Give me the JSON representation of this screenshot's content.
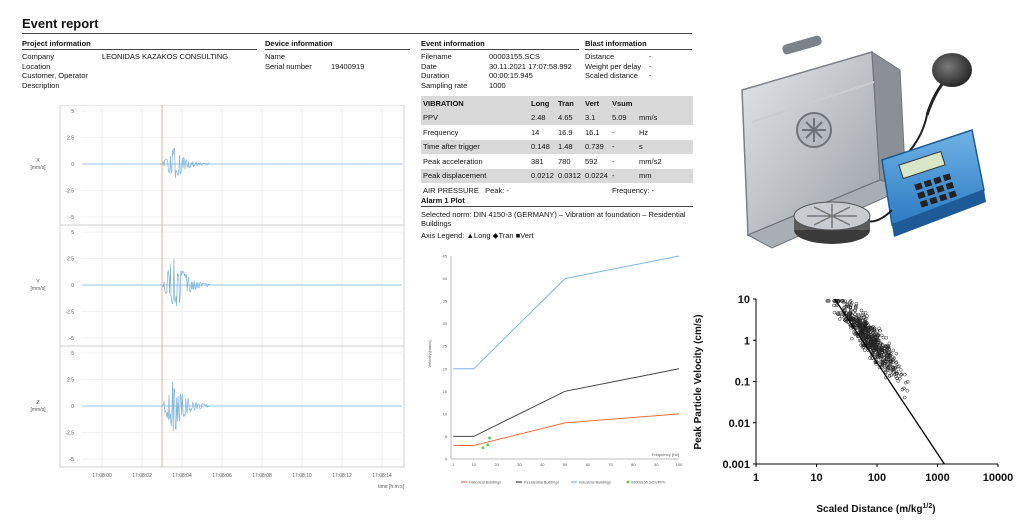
{
  "report": {
    "title": "Event report"
  },
  "project": {
    "heading": "Project information",
    "rows": [
      {
        "key": "Company",
        "value": "LEONIDAS KAZAKOS CONSULTING"
      },
      {
        "key": "Location",
        "value": ""
      },
      {
        "key": "Customer, Operator",
        "value": ""
      },
      {
        "key": "Description",
        "value": ""
      }
    ]
  },
  "device": {
    "heading": "Device information",
    "rows": [
      {
        "key": "Name",
        "value": ""
      },
      {
        "key": "Serial number",
        "value": "19400919"
      }
    ]
  },
  "event": {
    "heading": "Event information",
    "rows": [
      {
        "key": "Filename",
        "value": "00003155.SCS"
      },
      {
        "key": "Date",
        "value": "30.11.2021 17:07:58.992"
      },
      {
        "key": "Duration",
        "value": "00:00:15.945"
      },
      {
        "key": "Sampling rate",
        "value": "1000"
      }
    ]
  },
  "blast": {
    "heading": "Blast information",
    "rows": [
      {
        "key": "Distance",
        "value": "-"
      },
      {
        "key": "Weight per delay",
        "value": "-"
      },
      {
        "key": "Scaled distance",
        "value": "-"
      }
    ]
  },
  "vibration": {
    "header": [
      "VIBRATION",
      "Long",
      "Tran",
      "Vert",
      "Vsum",
      ""
    ],
    "rows": [
      [
        "PPV",
        "2.48",
        "4.65",
        "3.1",
        "5.09",
        "mm/s"
      ],
      [
        "Frequency",
        "14",
        "16.9",
        "16.1",
        "-",
        "Hz"
      ],
      [
        "Time after trigger",
        "0.148",
        "1.48",
        "0.739",
        "-",
        "s"
      ],
      [
        "Peak acceleration",
        "381",
        "780",
        "592",
        "-",
        "mm/s2"
      ],
      [
        "Peak displacement",
        "0.0212",
        "0.0312",
        "0.0224",
        "-",
        "mm"
      ]
    ],
    "air_pressure": {
      "label": "AIR PRESSURE",
      "peak": "Peak: -",
      "frequency": "Frequency: -"
    }
  },
  "alarm": {
    "heading": "Alarm 1 Plot",
    "norm": "Selected norm: DIN 4150-3 (GERMANY) – Vibration at foundation – Residential Buildings",
    "legend_label": "Axis Legend:",
    "legend_long": "▲Long",
    "legend_tran": "◆Tran",
    "legend_vert": "■Vert"
  },
  "waveforms": {
    "y_ticks": [
      "5",
      "2.5",
      "0",
      "-2.5",
      "-5"
    ],
    "x_ticks": [
      "17:08:00",
      "17:08:02",
      "17:08:04",
      "17:08:06",
      "17:08:08",
      "17:08:10",
      "17:08:12",
      "17:08:14"
    ],
    "x_label": "time [h:m:s]",
    "channels": [
      {
        "label": "X",
        "unit": "[mm/s]",
        "amplitude": 1.6,
        "seed": 3
      },
      {
        "label": "Y",
        "unit": "[mm/s]",
        "amplitude": 3.2,
        "seed": 7
      },
      {
        "label": "Z",
        "unit": "[mm/s]",
        "amplitude": 2.7,
        "seed": 11
      }
    ],
    "color": "#7db3dd",
    "trigger_color": "#e39a86"
  },
  "chart_data": [
    {
      "type": "line",
      "title": "",
      "xlabel": "Frequency [Hz]",
      "ylabel": "Velocity [mm/s]",
      "xlim": [
        0,
        100
      ],
      "ylim": [
        0,
        45
      ],
      "y_ticks": [
        "45",
        "40",
        "35",
        "30",
        "25",
        "20",
        "15",
        "10",
        "5",
        "0"
      ],
      "x_ticks": [
        "1",
        "10",
        "20",
        "30",
        "40",
        "50",
        "60",
        "70",
        "80",
        "90",
        "100"
      ],
      "series": [
        {
          "name": "Historical Buildings",
          "color": "#e8703a",
          "x": [
            1,
            10,
            50,
            100
          ],
          "y": [
            3,
            3,
            8,
            10
          ]
        },
        {
          "name": "Residential Buildings",
          "color": "#444444",
          "x": [
            1,
            10,
            50,
            100
          ],
          "y": [
            5,
            5,
            15,
            20
          ]
        },
        {
          "name": "Industrial Buildings",
          "color": "#7ab6e0",
          "x": [
            1,
            10,
            50,
            100
          ],
          "y": [
            20,
            20,
            40,
            50
          ]
        }
      ],
      "points": {
        "name": "00003155.SCS/PPV",
        "color": "#66c04a",
        "x": [
          14,
          16.9,
          16.1
        ],
        "y": [
          2.48,
          4.65,
          3.1
        ]
      }
    },
    {
      "type": "scatter",
      "xlabel": "Scaled Distance (m/kg",
      "xlabel_sup": "1/2",
      "xlabel_end": ")",
      "ylabel": "Peak Particle Velocity (cm/s)",
      "x_scale": "log",
      "y_scale": "log",
      "xlim": [
        1,
        10000
      ],
      "ylim": [
        0.001,
        10
      ],
      "x_ticks": [
        "1",
        "10",
        "100",
        "1000",
        "10000"
      ],
      "y_ticks": [
        "10",
        "1",
        "0.1",
        "0.01",
        "0.001"
      ],
      "fit_line": {
        "x": [
          20,
          1300
        ],
        "y": [
          10,
          0.001
        ]
      },
      "cloud": {
        "n": 650,
        "x_range": [
          13,
          450
        ]
      }
    }
  ],
  "device_photo": {
    "name": "seismograph-with-microphone-and-geophone"
  }
}
